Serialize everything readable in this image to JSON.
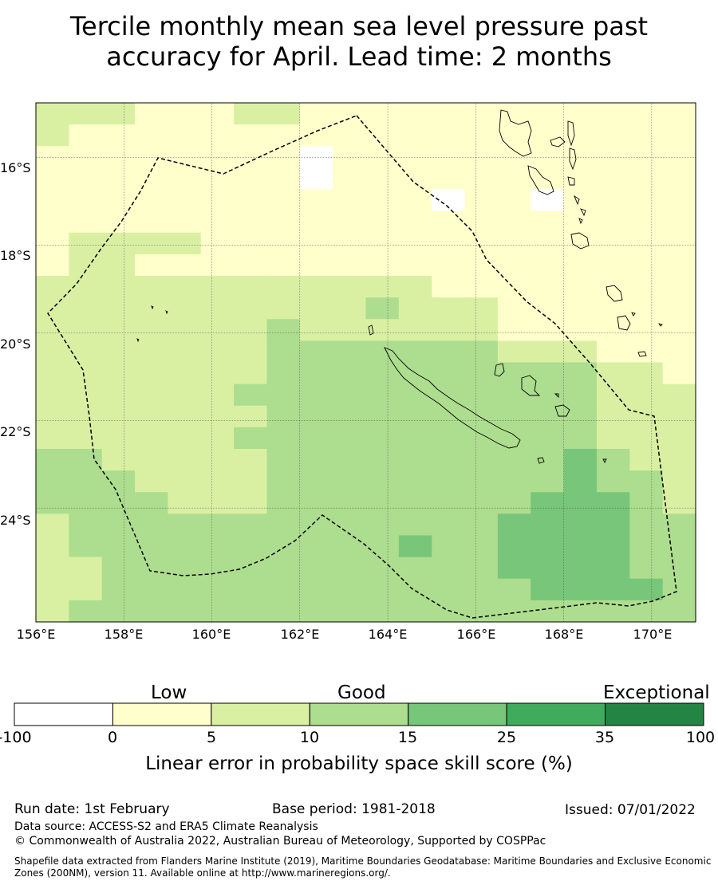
{
  "title": {
    "line1": "Tercile monthly mean sea level pressure past",
    "line2": "accuracy for April. Lead time: 2 months"
  },
  "map": {
    "lon_range": [
      156,
      171
    ],
    "lat_range": [
      -26.6,
      -14.75
    ],
    "x_ticks": [
      "156°E",
      "158°E",
      "160°E",
      "162°E",
      "164°E",
      "166°E",
      "168°E",
      "170°E"
    ],
    "y_ticks": [
      "16°S",
      "18°S",
      "20°S",
      "22°S",
      "24°S"
    ],
    "grid": true,
    "cell_size_degrees": 0.833,
    "skill_grid_note": "rows top (north) to bottom (south), columns west to east; each char is a skill class index 0..7",
    "skill_grid": [
      "22211122111111111111",
      "21111111111111111111",
      "11111111011111111111",
      "11111111011111111111",
      "11111111111101101111",
      "11111111111111111111",
      "12222111111111111111",
      "12211111111111111111",
      "22222222222211111111",
      "22222222223222111111",
      "22222223222222111111",
      "22222223333333222111",
      "22222223333333333221",
      "22222233333333333222",
      "22222223333333333222",
      "22222233333333333222",
      "33222223333333334322",
      "33322223333333334332",
      "33332223333333344432",
      "23333333333333444433",
      "23333333333433444433",
      "22333333333333444433",
      "22333333333333344443",
      "23333333333333333333"
    ],
    "boundary_label": "Maritime boundary (200NM)"
  },
  "colorbar": {
    "categories": [
      "Low",
      "Good",
      "Exceptional"
    ],
    "ticks": [
      "-100",
      "0",
      "5",
      "10",
      "15",
      "25",
      "35",
      "100"
    ],
    "colors": [
      "#ffffff",
      "#ffffcc",
      "#d9f0a3",
      "#addd8e",
      "#78c679",
      "#41ab5d",
      "#238443"
    ],
    "label": "Linear error in probability space skill score (%)"
  },
  "footer": {
    "run_date": "Run date: 1st February",
    "base_period": "Base period: 1981-2018",
    "issued": "Issued: 07/01/2022",
    "data_source": "Data source: ACCESS-S2 and ERA5 Climate Reanalysis",
    "copyright": "© Commonwealth of Australia 2022, Australian Bureau of Meteorology, Supported by COSPPac",
    "shapefile": "Shapefile data extracted from Flanders Marine Institute (2019), Maritime Boundaries Geodatabase: Maritime Boundaries and Exclusive Economic Zones (200NM), version 11. Available online at http://www.marineregions.org/."
  }
}
